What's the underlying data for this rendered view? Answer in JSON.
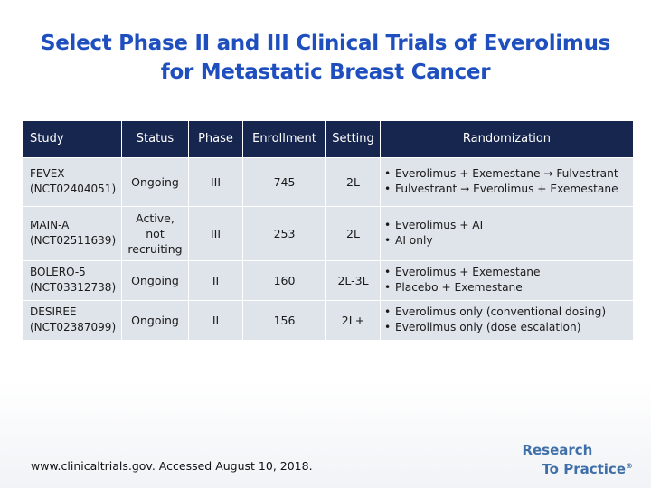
{
  "title": {
    "line1": "Select Phase II and III Clinical Trials of Everolimus",
    "line2": "for Metastatic Breast Cancer"
  },
  "table": {
    "headers": [
      "Study",
      "Status",
      "Phase",
      "Enrollment",
      "Setting",
      "Randomization"
    ],
    "rows": [
      {
        "study": [
          "FEVEX",
          "(NCT02404051)"
        ],
        "status": "Ongoing",
        "phase": "III",
        "enrollment": "745",
        "setting": "2L",
        "randomization": [
          {
            "pre": "Everolimus + Exemestane",
            "arrow": "→",
            "post": "Fulvestrant"
          },
          {
            "pre": "Fulvestrant",
            "arrow": "→",
            "post": "Everolimus + Exemestane"
          }
        ]
      },
      {
        "study": [
          "MAIN-A",
          "(NCT02511639)"
        ],
        "status": [
          "Active,",
          "not",
          "recruiting"
        ],
        "phase": "III",
        "enrollment": "253",
        "setting": "2L",
        "randomization": [
          {
            "pre": "Everolimus + AI",
            "arrow": "",
            "post": ""
          },
          {
            "pre": "AI only",
            "arrow": "",
            "post": ""
          }
        ]
      },
      {
        "study": [
          "BOLERO-5",
          "(NCT03312738)"
        ],
        "status": "Ongoing",
        "phase": "II",
        "enrollment": "160",
        "setting": "2L-3L",
        "randomization": [
          {
            "pre": "Everolimus + Exemestane",
            "arrow": "",
            "post": ""
          },
          {
            "pre": "Placebo + Exemestane",
            "arrow": "",
            "post": ""
          }
        ]
      },
      {
        "study": [
          "DESIREE",
          "(NCT02387099)"
        ],
        "status": "Ongoing",
        "phase": "II",
        "enrollment": "156",
        "setting": "2L+",
        "randomization": [
          {
            "pre": "Everolimus only (conventional dosing)",
            "arrow": "",
            "post": ""
          },
          {
            "pre": "Everolimus only (dose escalation)",
            "arrow": "",
            "post": ""
          }
        ]
      }
    ]
  },
  "footnote": "www.clinicaltrials.gov. Accessed August 10, 2018.",
  "logo": {
    "line1": "Research",
    "line2": "To Practice",
    "mark": "®"
  },
  "colors": {
    "title": "#1f4fbf",
    "header_bg": "#17264f",
    "row_bg": "#dfe3ea",
    "logo": "#3f6fa8"
  }
}
